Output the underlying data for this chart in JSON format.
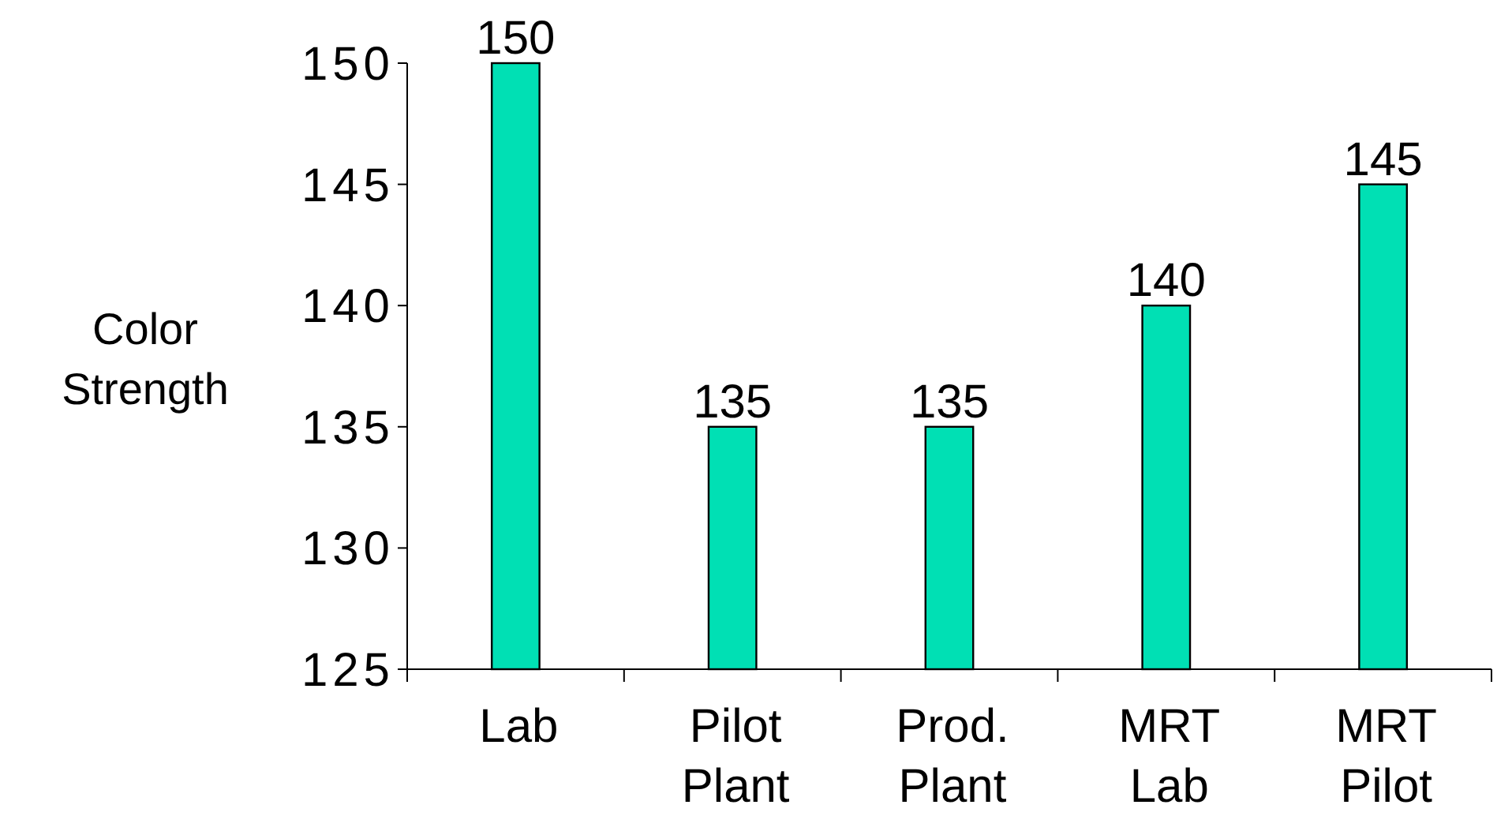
{
  "chart_data": {
    "type": "bar",
    "ylabel": "Color Strength",
    "categories": [
      "Lab",
      "Pilot Plant",
      "Prod. Plant",
      "MRT Lab",
      "MRT Pilot"
    ],
    "values": [
      150,
      135,
      135,
      140,
      145
    ],
    "color": "#00e0b4",
    "ylim": [
      125,
      150
    ],
    "yticks": [
      125,
      130,
      135,
      140,
      145,
      150
    ],
    "grid": false,
    "data_labels": true
  }
}
